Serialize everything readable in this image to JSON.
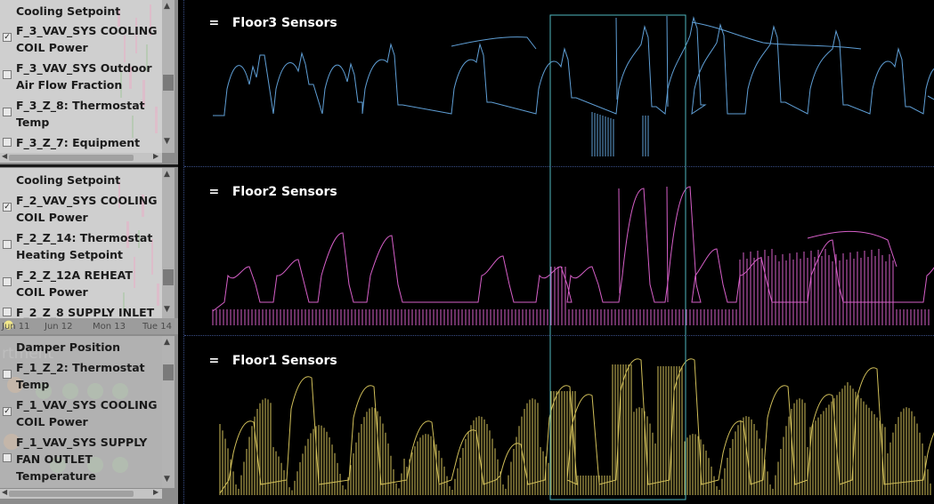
{
  "sidebar": {
    "groups": [
      {
        "items": [
          {
            "label": "Cooling Setpoint",
            "checked": null
          },
          {
            "label": "F_3_VAV_SYS COOLING COIL Power",
            "checked": true
          },
          {
            "label": "F_3_VAV_SYS Outdoor Air Flow Fraction",
            "checked": false
          },
          {
            "label": "F_3_Z_8: Thermostat Temp",
            "checked": false
          },
          {
            "label": "F_3_Z_7: Equipment",
            "checked": false
          }
        ]
      },
      {
        "items": [
          {
            "label": "Cooling Setpoint",
            "checked": null
          },
          {
            "label": "F_2_VAV_SYS COOLING COIL Power",
            "checked": true
          },
          {
            "label": "F_2_Z_14: Thermostat Heating Setpoint",
            "checked": false
          },
          {
            "label": "F_2_Z_12A REHEAT COIL Power",
            "checked": false
          },
          {
            "label": "F_2_Z_8 SUPPLY INLET",
            "checked": false
          }
        ]
      },
      {
        "items": [
          {
            "label": "Damper Position",
            "checked": null
          },
          {
            "label": "F_1_Z_2: Thermostat Temp",
            "checked": false
          },
          {
            "label": "F_1_VAV_SYS COOLING COIL Power",
            "checked": true
          },
          {
            "label": "F_1_VAV_SYS SUPPLY FAN OUTLET Temperature",
            "checked": false
          }
        ]
      }
    ],
    "date_strip": [
      "Jun 11",
      "Jun 12",
      "Mon 13",
      "Tue 14"
    ],
    "ghost_text": "rtment",
    "checkmark": "✓"
  },
  "panels": [
    {
      "title": "Floor3 Sensors",
      "color": "#5f9fd6",
      "menu_icon": "="
    },
    {
      "title": "Floor2 Sensors",
      "color": "#d65fc8",
      "menu_icon": "="
    },
    {
      "title": "Floor1 Sensors",
      "color": "#d2c05a",
      "menu_icon": "="
    }
  ],
  "selection_color": "#4fb8c0",
  "chart_data": [
    {
      "type": "line",
      "title": "Floor3 Sensors",
      "series": [
        {
          "name": "F_3_VAV_SYS COOLING COIL Power",
          "pattern": "daily-cycle",
          "period_days": 1
        }
      ],
      "selection": {
        "start_fraction": 0.49,
        "end_fraction": 0.67
      }
    },
    {
      "type": "line",
      "title": "Floor2 Sensors",
      "series": [
        {
          "name": "F_2_VAV_SYS COOLING COIL Power",
          "pattern": "daily-cycle",
          "period_days": 1
        }
      ]
    },
    {
      "type": "line",
      "title": "Floor1 Sensors",
      "series": [
        {
          "name": "F_1_VAV_SYS COOLING COIL Power",
          "pattern": "daily-cycle",
          "period_days": 1
        }
      ]
    }
  ]
}
